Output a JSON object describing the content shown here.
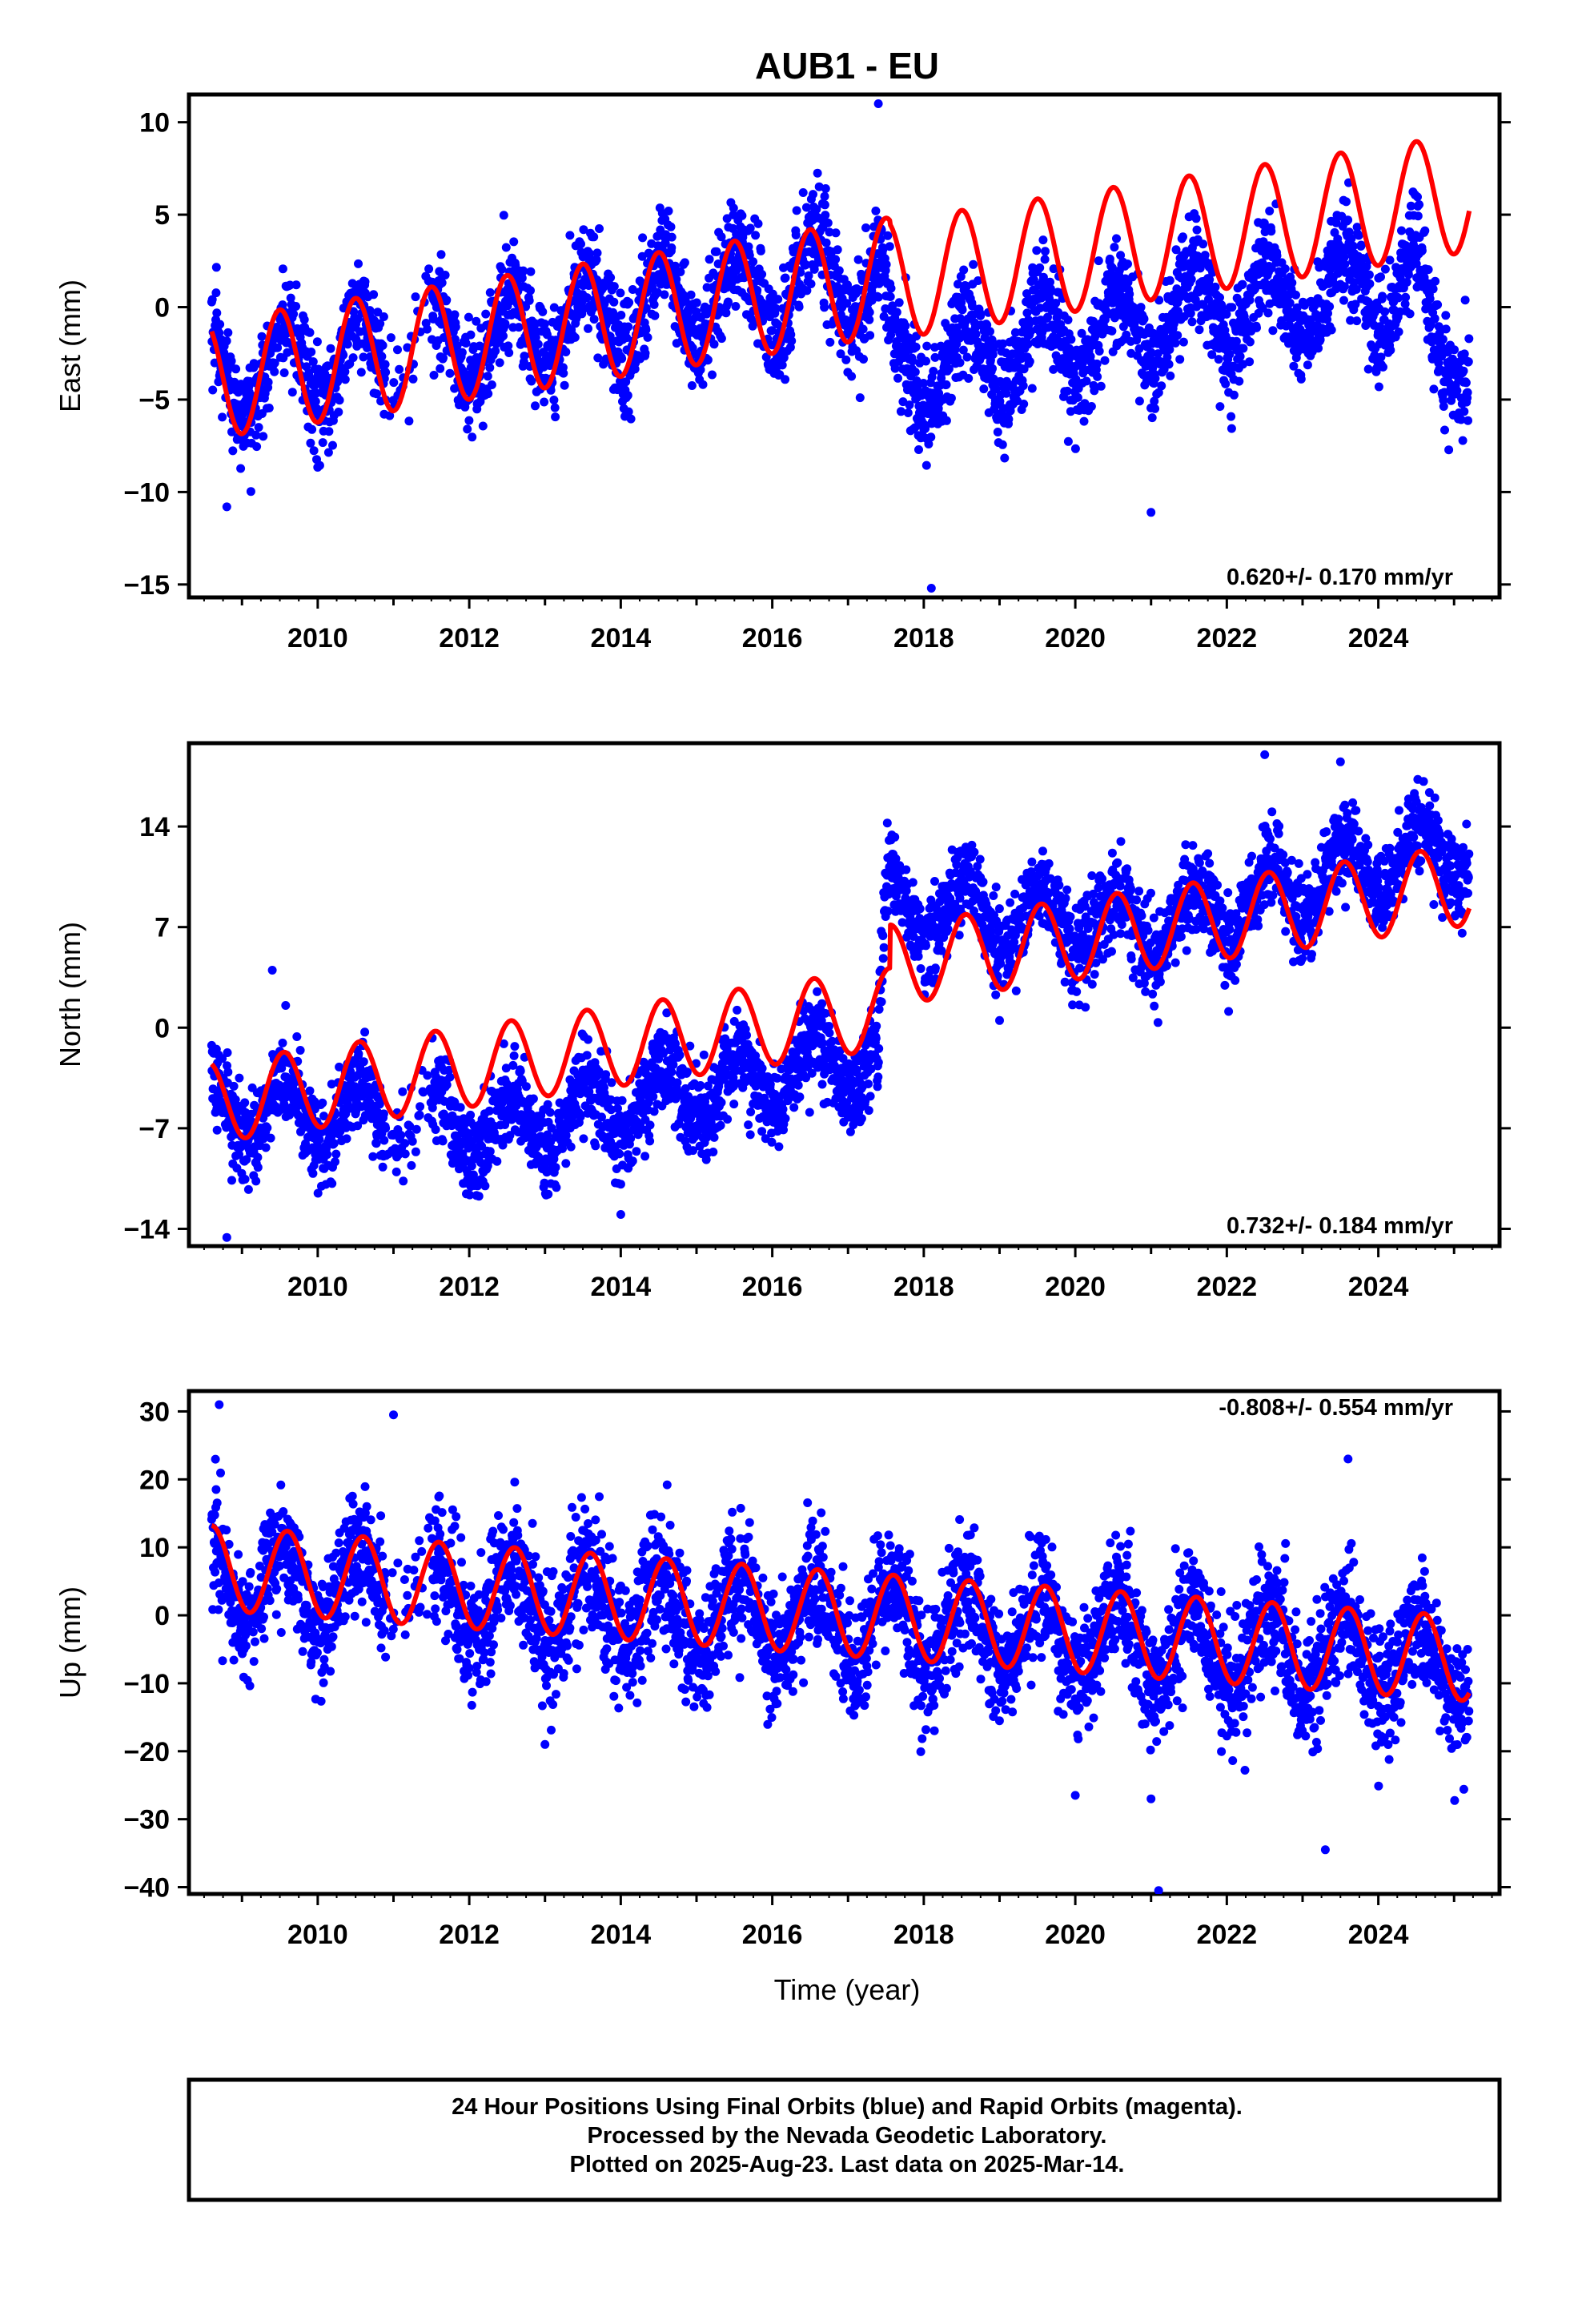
{
  "title": "AUB1 - EU",
  "xlabel": "Time (year)",
  "footer": [
    "24 Hour Positions Using Final Orbits (blue) and Rapid Orbits (magenta).",
    "Processed by the Nevada Geodetic Laboratory.",
    "Plotted on 2025-Aug-23. Last data on 2025-Mar-14."
  ],
  "colors": {
    "data": "#0000ff",
    "model": "#ff0000",
    "axis": "#000000"
  },
  "chart_data": [
    {
      "type": "scatter",
      "ylabel": "East (mm)",
      "rate_text": "0.620+/- 0.170 mm/yr",
      "xlim": [
        2008.3,
        2025.6
      ],
      "ylim": [
        -15.7,
        11.5
      ],
      "xticks": [
        2010,
        2012,
        2014,
        2016,
        2018,
        2020,
        2022,
        2024
      ],
      "yticks": [
        10,
        5,
        0,
        -5,
        -10,
        -15
      ],
      "data_range": [
        2008.6,
        2025.2
      ],
      "series": [
        {
          "kind": "daily positions",
          "trend": [
            [
              2008.6,
              -4.0
            ],
            [
              2013.0,
              -1.0
            ],
            [
              2017.4,
              1.8
            ],
            [
              2017.6,
              -3.5
            ],
            [
              2021.0,
              -0.8
            ],
            [
              2024.5,
              1.5
            ],
            [
              2024.7,
              -2.5
            ],
            [
              2025.2,
              -2.0
            ]
          ],
          "amp": 2.4,
          "noise": 1.4,
          "outliers": [
            [
              2017.4,
              11.0
            ],
            [
              2018.1,
              -15.2
            ],
            [
              2021.0,
              -11.1
            ],
            [
              2008.8,
              -10.8
            ]
          ]
        },
        {
          "kind": "model fit",
          "start": 2008.6,
          "end": 2025.2,
          "offset": -3.9,
          "rate": 0.62,
          "steps": [
            [
              2017.55,
              -0.2
            ]
          ],
          "amp": 3.2,
          "peak": 0.5
        }
      ]
    },
    {
      "type": "scatter",
      "ylabel": "North (mm)",
      "rate_text": "0.732+/- 0.184 mm/yr",
      "xlim": [
        2008.3,
        2025.6
      ],
      "ylim": [
        -15.2,
        19.8
      ],
      "xticks": [
        2010,
        2012,
        2014,
        2016,
        2018,
        2020,
        2022,
        2024
      ],
      "yticks": [
        14,
        7,
        0,
        -7,
        -14
      ],
      "data_range": [
        2008.6,
        2025.2
      ],
      "series": [
        {
          "kind": "daily positions",
          "trend": [
            [
              2008.6,
              -5.5
            ],
            [
              2012.5,
              -7.0
            ],
            [
              2017.4,
              -2.0
            ],
            [
              2017.5,
              8.5
            ],
            [
              2021.0,
              7.0
            ],
            [
              2025.2,
              13.0
            ]
          ],
          "amp": 2.2,
          "noise": 1.5,
          "outliers": [
            [
              2008.8,
              -14.6
            ],
            [
              2009.4,
              4.0
            ],
            [
              2014.0,
              -13.0
            ],
            [
              2022.5,
              19.0
            ],
            [
              2023.5,
              18.5
            ],
            [
              2019.0,
              0.5
            ]
          ]
        },
        {
          "kind": "model fit",
          "start": 2008.6,
          "end": 2025.2,
          "offset": -5.2,
          "rate": 0.732,
          "steps": [
            [
              2017.55,
              3.0
            ]
          ],
          "amp": 2.8,
          "peak": 0.55
        }
      ]
    },
    {
      "type": "scatter",
      "ylabel": "Up (mm)",
      "rate_text": "-0.808+/- 0.554 mm/yr",
      "xlim": [
        2008.3,
        2025.6
      ],
      "ylim": [
        -41.0,
        33.0
      ],
      "xticks": [
        2010,
        2012,
        2014,
        2016,
        2018,
        2020,
        2022,
        2024
      ],
      "yticks": [
        30,
        20,
        10,
        0,
        -10,
        -20,
        -30,
        -40
      ],
      "data_range": [
        2008.6,
        2025.2
      ],
      "series": [
        {
          "kind": "daily positions",
          "trend": [
            [
              2008.6,
              5.0
            ],
            [
              2016.0,
              0.0
            ],
            [
              2025.2,
              -7.0
            ]
          ],
          "amp": 6.0,
          "noise": 4.5,
          "outliers": [
            [
              2008.7,
              31.0
            ],
            [
              2011.0,
              29.5
            ],
            [
              2020.0,
              -26.5
            ],
            [
              2021.0,
              -27.0
            ],
            [
              2021.1,
              -40.5
            ],
            [
              2023.3,
              -34.5
            ],
            [
              2023.6,
              23.0
            ],
            [
              2013.0,
              -19.0
            ]
          ]
        },
        {
          "kind": "model fit",
          "start": 2008.6,
          "end": 2025.2,
          "offset": 7.0,
          "rate": -0.808,
          "steps": [],
          "amp": 6.2,
          "peak": 0.6
        }
      ]
    }
  ]
}
